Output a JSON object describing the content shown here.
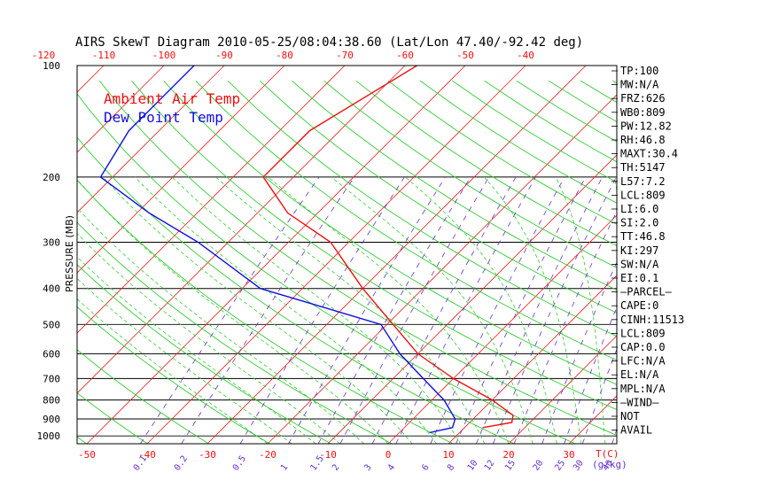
{
  "chart_data": {
    "type": "line",
    "title": "AIRS SkewT Diagram 2010-05-25/08:04:38.60 (Lat/Lon 47.40/-92.42 deg)",
    "ylabel": "PRESSURE (MB)",
    "xlabel": "T(C)",
    "mixing_ratio_label": "(g/kg)",
    "pressure_ticks": [
      100,
      200,
      300,
      400,
      500,
      600,
      700,
      800,
      900,
      1000
    ],
    "top_temp_ticks": [
      -120,
      -110,
      -100,
      -90,
      -80,
      -70,
      -60,
      -50,
      -40
    ],
    "bottom_temp_ticks": [
      -50,
      -40,
      -30,
      -20,
      -10,
      0,
      10,
      20,
      30
    ],
    "mixing_ratio_ticks": [
      "0.1",
      "0.2",
      "0.5",
      "1",
      "1.5",
      "2",
      "3",
      "4",
      "6",
      "8",
      "10",
      "12",
      "15",
      "20",
      "25",
      "30",
      "40"
    ],
    "mixing_ratio_values": [
      0.1,
      0.2,
      0.5,
      1,
      1.5,
      2,
      3,
      4,
      6,
      8,
      10,
      12,
      15,
      20,
      25,
      30,
      40
    ],
    "legend": {
      "air_temp": "Ambient Air Temp",
      "dew_point": "Dew Point Temp"
    },
    "colors": {
      "air_temp": "#ee1111",
      "dew_point": "#1111dd",
      "isotherm": "#ee2222",
      "dry_adiabat": "#33cc33",
      "moist_adiabat": "#33cc33",
      "mixing_ratio": "#6633cc",
      "axis_text": "#000000",
      "temp_ticks": "#ee1111"
    },
    "series": [
      {
        "name": "Ambient Air Temp",
        "points": [
          [
            100,
            -58
          ],
          [
            150,
            -65
          ],
          [
            200,
            -65
          ],
          [
            250,
            -55
          ],
          [
            300,
            -43
          ],
          [
            400,
            -30
          ],
          [
            500,
            -19
          ],
          [
            600,
            -10
          ],
          [
            700,
            0
          ],
          [
            800,
            10
          ],
          [
            880,
            16
          ],
          [
            920,
            17
          ],
          [
            950,
            13
          ]
        ]
      },
      {
        "name": "Dew Point Temp",
        "points": [
          [
            100,
            -95
          ],
          [
            150,
            -95
          ],
          [
            200,
            -92
          ],
          [
            250,
            -78
          ],
          [
            300,
            -65
          ],
          [
            400,
            -47
          ],
          [
            500,
            -21
          ],
          [
            600,
            -13
          ],
          [
            700,
            -5
          ],
          [
            800,
            2
          ],
          [
            900,
            7
          ],
          [
            950,
            8
          ],
          [
            980,
            5
          ]
        ]
      }
    ],
    "indices": [
      "TP:100",
      "MW:N/A",
      "FRZ:626",
      "WB0:809",
      "PW:12.82",
      "RH:46.8",
      "MAXT:30.4",
      "TH:5147",
      "L57:7.2",
      "LCL:809",
      "LI:6.0",
      "SI:2.0",
      "TT:46.8",
      "KI:297",
      "SW:N/A",
      "EI:0.1",
      "—PARCEL—",
      "CAPE:0",
      "CINH:11513",
      "LCL:809",
      "CAP:0.0",
      "LFC:N/A",
      "EL:N/A",
      "MPL:N/A",
      "—WIND—",
      "NOT",
      "AVAIL"
    ]
  }
}
